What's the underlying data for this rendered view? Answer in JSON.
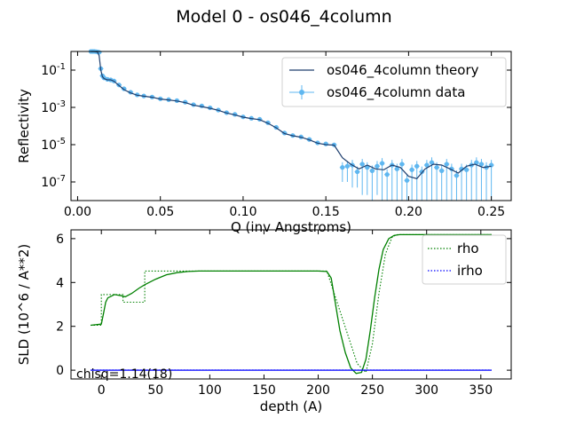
{
  "figure": {
    "suptitle": "Model 0 - os046_4column"
  },
  "chart_data": [
    {
      "type": "line",
      "panel": "top",
      "title": "",
      "xlabel": "Q (inv Angstroms)",
      "ylabel": "Reflectivity",
      "yscale": "log",
      "xlim": [
        -0.004,
        0.262
      ],
      "ylim": [
        1e-08,
        1.0
      ],
      "xticks": [
        0.0,
        0.05,
        0.1,
        0.15,
        0.2,
        0.25
      ],
      "xtick_labels": [
        "0.00",
        "0.05",
        "0.10",
        "0.15",
        "0.20",
        "0.25"
      ],
      "yticks": [
        0.1,
        0.001,
        1e-05,
        1e-07
      ],
      "ytick_labels": [
        "10^-1",
        "10^-3",
        "10^-5",
        "10^-7"
      ],
      "legend": {
        "position": "upper right",
        "entries": [
          "os046_4column theory",
          "os046_4column data"
        ]
      },
      "colors": {
        "theory": "#1f3f6e",
        "data": "#5fb7f0"
      },
      "series": [
        {
          "name": "os046_4column theory",
          "style": "line",
          "x": [
            0.008,
            0.01,
            0.012,
            0.013,
            0.014,
            0.015,
            0.016,
            0.018,
            0.02,
            0.022,
            0.025,
            0.028,
            0.032,
            0.036,
            0.04,
            0.045,
            0.05,
            0.055,
            0.06,
            0.065,
            0.07,
            0.075,
            0.08,
            0.085,
            0.09,
            0.095,
            0.1,
            0.105,
            0.11,
            0.115,
            0.12,
            0.125,
            0.13,
            0.135,
            0.14,
            0.145,
            0.15,
            0.155,
            0.16,
            0.165,
            0.17,
            0.175,
            0.18,
            0.185,
            0.19,
            0.195,
            0.2,
            0.205,
            0.21,
            0.215,
            0.22,
            0.225,
            0.23,
            0.235,
            0.24,
            0.245,
            0.25
          ],
          "y": [
            1.0,
            1.0,
            0.95,
            0.6,
            0.1,
            0.045,
            0.035,
            0.03,
            0.03,
            0.025,
            0.015,
            0.009,
            0.006,
            0.0045,
            0.004,
            0.0035,
            0.0028,
            0.0025,
            0.0022,
            0.0018,
            0.0013,
            0.0011,
            0.0009,
            0.0007,
            0.0005,
            0.0004,
            0.0003,
            0.00025,
            0.00022,
            0.00014,
            8e-05,
            4e-05,
            3e-05,
            2.5e-05,
            1.8e-05,
            1.2e-05,
            1e-05,
            9.5e-06,
            2e-06,
            9e-07,
            5e-07,
            8e-07,
            5e-07,
            4.5e-07,
            8e-07,
            6e-07,
            2e-07,
            1.5e-07,
            5e-07,
            9e-07,
            8e-07,
            5e-07,
            3e-07,
            7e-07,
            9e-07,
            6e-07,
            7e-07
          ]
        },
        {
          "name": "os046_4column data",
          "style": "scatter",
          "x": [
            0.008,
            0.009,
            0.01,
            0.011,
            0.012,
            0.013,
            0.014,
            0.015,
            0.016,
            0.018,
            0.02,
            0.022,
            0.025,
            0.028,
            0.032,
            0.036,
            0.04,
            0.045,
            0.05,
            0.055,
            0.06,
            0.065,
            0.07,
            0.075,
            0.08,
            0.085,
            0.09,
            0.095,
            0.1,
            0.105,
            0.11,
            0.115,
            0.12,
            0.125,
            0.13,
            0.135,
            0.14,
            0.145,
            0.15,
            0.155,
            0.16,
            0.163,
            0.166,
            0.169,
            0.172,
            0.175,
            0.178,
            0.181,
            0.184,
            0.187,
            0.19,
            0.193,
            0.196,
            0.199,
            0.202,
            0.205,
            0.208,
            0.211,
            0.214,
            0.217,
            0.22,
            0.223,
            0.226,
            0.229,
            0.232,
            0.235,
            0.238,
            0.241,
            0.244,
            0.247,
            0.25
          ],
          "y": [
            1.0,
            1.0,
            1.0,
            0.98,
            0.95,
            0.9,
            0.12,
            0.05,
            0.038,
            0.032,
            0.03,
            0.026,
            0.016,
            0.01,
            0.0065,
            0.0047,
            0.0041,
            0.0036,
            0.0029,
            0.0026,
            0.0023,
            0.0019,
            0.0014,
            0.0012,
            0.00095,
            0.00072,
            0.00052,
            0.00042,
            0.00031,
            0.00026,
            0.00023,
            0.00015,
            8.5e-05,
            4.2e-05,
            3.1e-05,
            2.6e-05,
            1.9e-05,
            1.25e-05,
            1.1e-05,
            9.8e-06,
            6e-07,
            7e-07,
            8e-07,
            3.5e-07,
            9e-07,
            6e-07,
            4e-07,
            7e-07,
            1e-06,
            2.5e-07,
            8e-07,
            5e-07,
            9e-07,
            1.2e-07,
            4.5e-07,
            7e-07,
            3.5e-07,
            8e-07,
            1.1e-06,
            6e-07,
            4e-07,
            9e-07,
            5e-07,
            2.2e-07,
            5e-07,
            4.5e-07,
            8e-07,
            1.1e-06,
            9e-07,
            6e-07,
            8e-07
          ],
          "yerr_low": [
            0.0,
            0.0,
            0.0,
            0.0,
            0.0,
            0.0,
            0.0,
            0.0,
            0.0,
            0.0,
            0.0,
            0.0,
            0.0,
            0.0,
            0.0,
            0.0,
            0.0,
            0.0,
            0.0,
            0.0,
            0.0,
            0.0,
            0.0,
            0.0,
            0.0,
            0.0,
            0.0,
            0.0,
            0.0,
            0.0,
            0.0,
            0.0,
            0.0,
            0.0,
            0.0,
            0.0,
            0.0,
            0.0,
            0.0,
            0.0,
            5e-07,
            6e-07,
            7.5e-07,
            3e-07,
            8.8e-07,
            5.8e-07,
            3.9e-07,
            6.8e-07,
            9.9e-07,
            2.4e-07,
            7.9e-07,
            4.9e-07,
            8.9e-07,
            1.1e-07,
            4.4e-07,
            6.9e-07,
            3.4e-07,
            7.9e-07,
            1.09e-06,
            5.9e-07,
            3.9e-07,
            8.9e-07,
            4.9e-07,
            2.1e-07,
            4.9e-07,
            4.4e-07,
            7.9e-07,
            1.09e-06,
            8.9e-07,
            5.9e-07,
            7.9e-07
          ]
        }
      ]
    },
    {
      "type": "line",
      "panel": "bottom",
      "title": "",
      "xlabel": "depth (A)",
      "ylabel": "SLD (10^6 / A**2)",
      "xlim": [
        -28,
        378
      ],
      "ylim": [
        -0.4,
        6.4
      ],
      "xticks": [
        0,
        50,
        100,
        150,
        200,
        250,
        300,
        350
      ],
      "xtick_labels": [
        "0",
        "50",
        "100",
        "150",
        "200",
        "250",
        "300",
        "350"
      ],
      "yticks": [
        0,
        2,
        4,
        6
      ],
      "ytick_labels": [
        "0",
        "2",
        "4",
        "6"
      ],
      "legend": {
        "position": "upper right",
        "entries": [
          "rho",
          "irho"
        ]
      },
      "annotation": "chisq=1.14(18)",
      "colors": {
        "rho": "#008000",
        "irho": "#0000ff"
      },
      "series": [
        {
          "name": "rho",
          "style": "solid",
          "x": [
            -10,
            0,
            2,
            4,
            6,
            8,
            12,
            18,
            22,
            28,
            35,
            40,
            50,
            60,
            70,
            80,
            90,
            100,
            150,
            200,
            208,
            212,
            216,
            220,
            225,
            230,
            235,
            240,
            244,
            248,
            252,
            256,
            260,
            265,
            270,
            275,
            285,
            300,
            360
          ],
          "y": [
            2.05,
            2.1,
            2.6,
            3.1,
            3.3,
            3.35,
            3.45,
            3.4,
            3.35,
            3.5,
            3.75,
            3.9,
            4.15,
            4.35,
            4.45,
            4.5,
            4.52,
            4.52,
            4.52,
            4.52,
            4.5,
            4.2,
            3.0,
            1.8,
            0.8,
            0.1,
            -0.15,
            -0.1,
            0.5,
            1.8,
            3.3,
            4.6,
            5.5,
            6.0,
            6.15,
            6.18,
            6.18,
            6.18,
            6.18
          ]
        },
        {
          "name": "rho",
          "style": "dotted",
          "x": [
            -10,
            0,
            0,
            20,
            20,
            40,
            40,
            208,
            208,
            236,
            244,
            250,
            256,
            262,
            268,
            272,
            360
          ],
          "y": [
            2.05,
            2.05,
            3.45,
            3.45,
            3.1,
            3.1,
            4.52,
            4.52,
            4.52,
            0.3,
            -0.1,
            1.2,
            3.5,
            5.3,
            6.05,
            6.18,
            6.18
          ]
        },
        {
          "name": "irho",
          "style": "solid",
          "x": [
            -10,
            360
          ],
          "y": [
            0.0,
            0.0
          ]
        },
        {
          "name": "irho",
          "style": "dotted",
          "x": [
            -10,
            360
          ],
          "y": [
            0.01,
            0.01
          ]
        }
      ]
    }
  ]
}
